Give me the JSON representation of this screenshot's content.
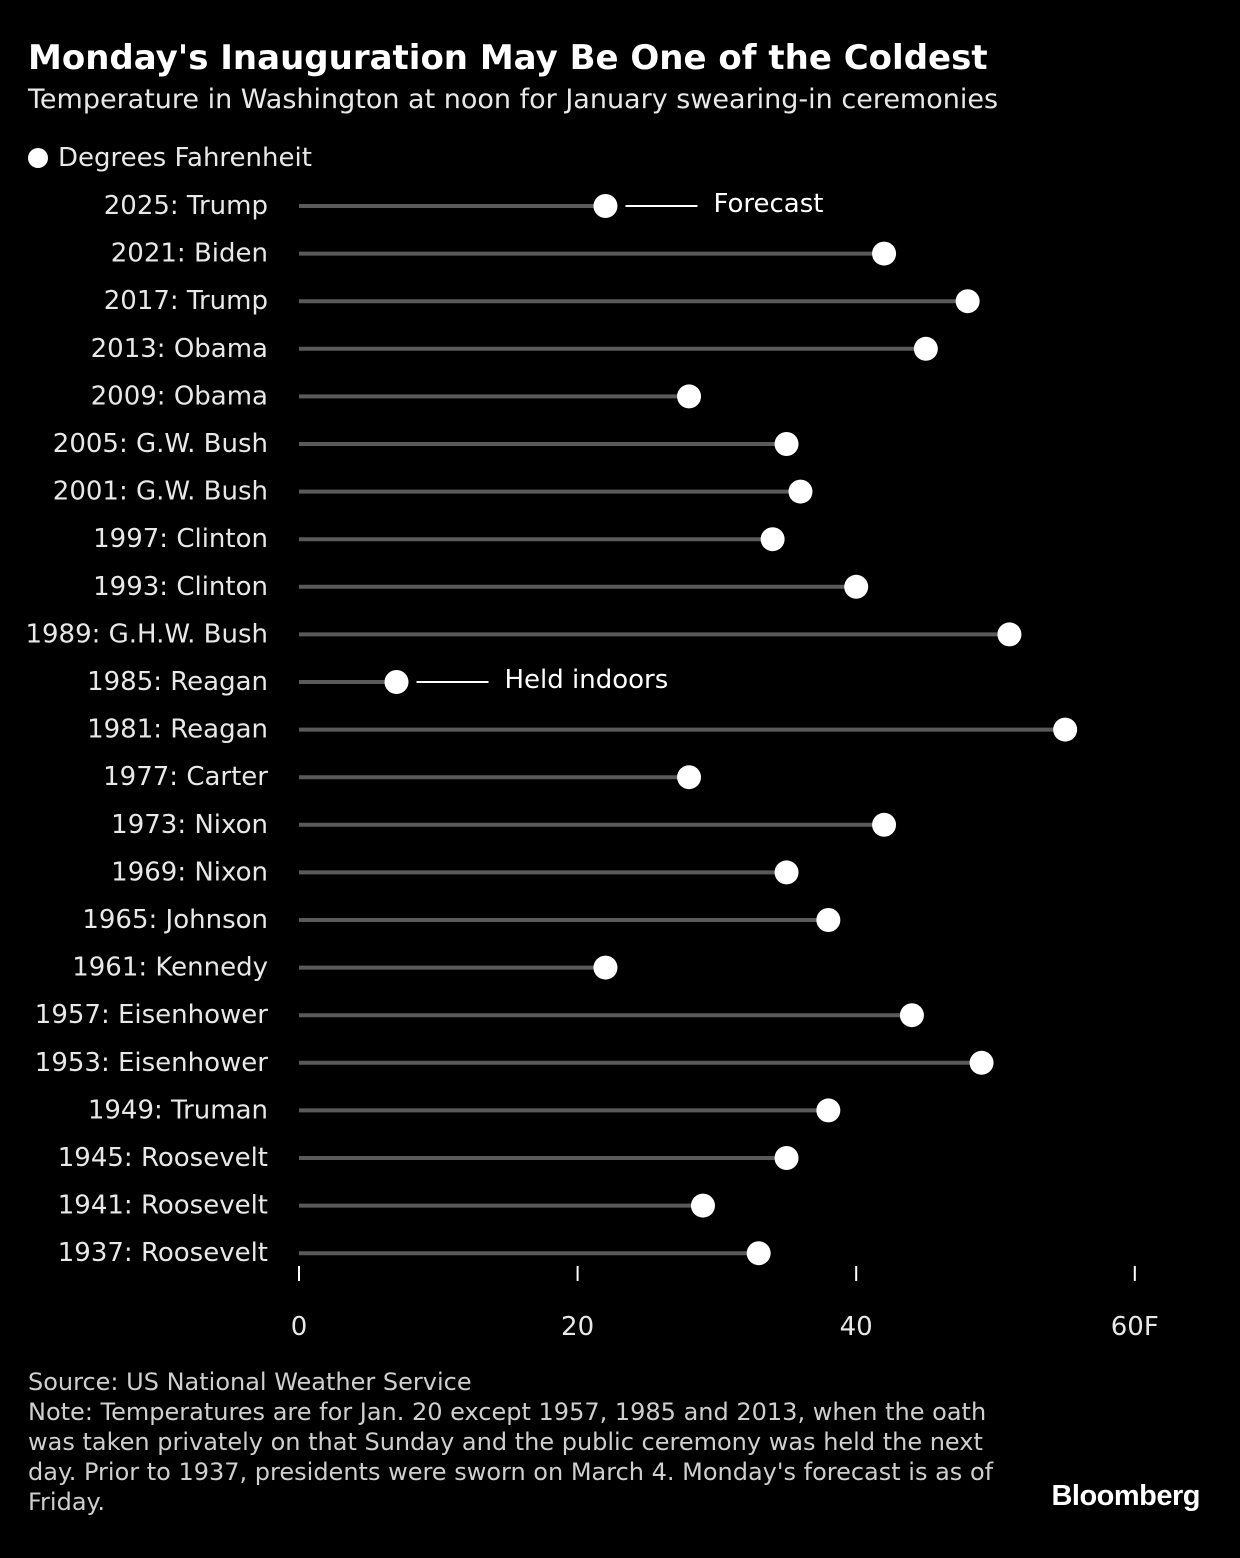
{
  "header": {
    "title": "Monday's Inauguration May Be One of the Coldest",
    "subtitle": "Temperature in Washington at noon for January swearing-in ceremonies"
  },
  "legend": {
    "label": "Degrees Fahrenheit"
  },
  "chart_data": {
    "type": "dot-plot",
    "title": "Monday's Inauguration May Be One of the Coldest",
    "subtitle": "Temperature in Washington at noon for January swearing-in ceremonies",
    "xlabel": "",
    "ylabel": "",
    "xlim": [
      0,
      60
    ],
    "x_ticks": [
      0,
      20,
      40,
      60
    ],
    "x_tick_labels": [
      "0",
      "20",
      "40",
      "60F"
    ],
    "series": [
      {
        "name": "Degrees Fahrenheit",
        "categories": [
          "2025: Trump",
          "2021: Biden",
          "2017: Trump",
          "2013: Obama",
          "2009: Obama",
          "2005: G.W. Bush",
          "2001: G.W. Bush",
          "1997: Clinton",
          "1993: Clinton",
          "1989: G.H.W. Bush",
          "1985: Reagan",
          "1981: Reagan",
          "1977: Carter",
          "1973: Nixon",
          "1969: Nixon",
          "1965: Johnson",
          "1961: Kennedy",
          "1957: Eisenhower",
          "1953: Eisenhower",
          "1949: Truman",
          "1945: Roosevelt",
          "1941: Roosevelt",
          "1937: Roosevelt"
        ],
        "values": [
          22,
          42,
          48,
          45,
          28,
          35,
          36,
          34,
          40,
          51,
          7,
          55,
          28,
          42,
          35,
          38,
          22,
          44,
          49,
          38,
          35,
          29,
          33
        ]
      }
    ],
    "annotations": [
      {
        "category": "2025: Trump",
        "text": "Forecast"
      },
      {
        "category": "1985: Reagan",
        "text": "Held indoors"
      }
    ]
  },
  "footer": {
    "source": "Source: US National Weather Service",
    "note": "Note: Temperatures are for Jan. 20 except 1957, 1985 and 2013, when the oath was taken privately on that Sunday and the public ceremony was held the next day. Prior to 1937, presidents were sworn on March 4. Monday's forecast is as of Friday.",
    "brand": "Bloomberg"
  },
  "colors": {
    "background": "#000000",
    "stem": "#5a5a5a",
    "dot": "#ffffff",
    "text": "#ffffff",
    "muted_text": "#cfcfcf"
  }
}
